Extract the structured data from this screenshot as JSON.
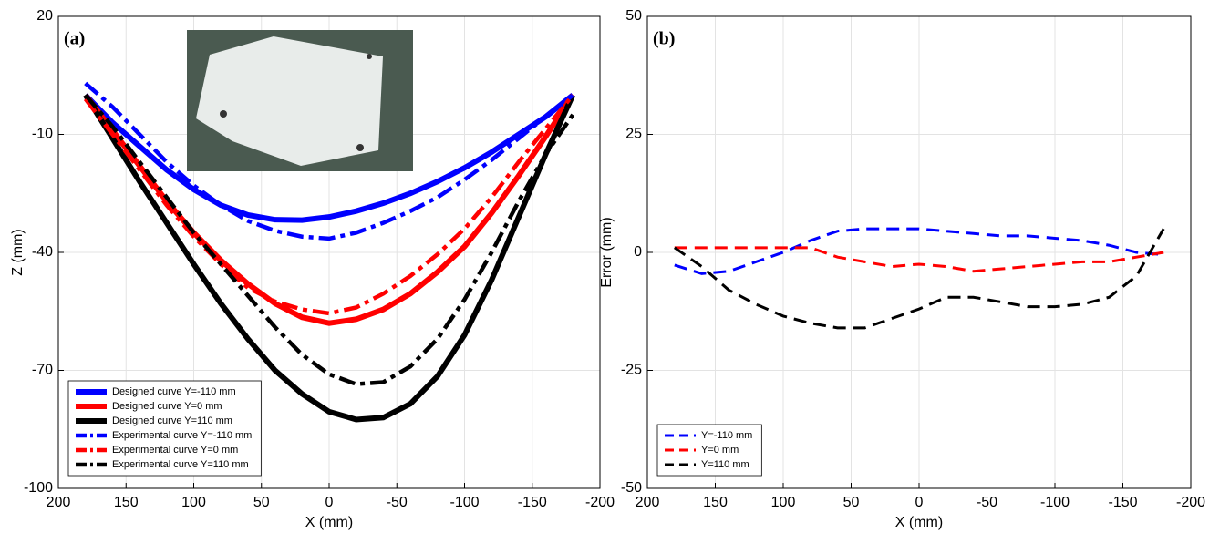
{
  "chart_data": [
    {
      "type": "line",
      "panel_label": "(a)",
      "xlabel": "X (mm)",
      "ylabel": "Z (mm)",
      "x": [
        180,
        160,
        140,
        120,
        100,
        80,
        60,
        40,
        20,
        0,
        -20,
        -40,
        -60,
        -80,
        -100,
        -120,
        -140,
        -160,
        -180
      ],
      "xlim": [
        200,
        -200
      ],
      "xticks": [
        200,
        150,
        100,
        50,
        0,
        -50,
        -100,
        -150,
        -200
      ],
      "ylim": [
        -100,
        20
      ],
      "yticks": [
        -100,
        -70,
        -40,
        -10,
        20
      ],
      "grid": true,
      "legend_loc": "lower left",
      "series": [
        {
          "name": "Designed curve Y=-110 mm",
          "color": "#0000ff",
          "style": "solid",
          "values": [
            0,
            -7,
            -13,
            -19,
            -24,
            -28,
            -30.5,
            -31.7,
            -31.8,
            -31,
            -29.5,
            -27.5,
            -25,
            -22,
            -18.5,
            -14.5,
            -10,
            -5.5,
            0
          ]
        },
        {
          "name": "Designed curve Y=0 mm",
          "color": "#ff0000",
          "style": "solid",
          "values": [
            0,
            -9,
            -18,
            -27,
            -35,
            -42,
            -48,
            -53,
            -56.5,
            -58,
            -57,
            -54.5,
            -50.5,
            -45,
            -38.5,
            -30,
            -20.5,
            -10.5,
            0
          ]
        },
        {
          "name": "Designed curve Y=110 mm",
          "color": "#000000",
          "style": "solid",
          "values": [
            0,
            -11,
            -22,
            -32.5,
            -43,
            -53,
            -62,
            -70,
            -76,
            -80.5,
            -82.5,
            -82,
            -78.5,
            -71.5,
            -61,
            -47,
            -31,
            -15,
            0
          ]
        },
        {
          "name": "Experimental curve Y=-110 mm",
          "color": "#0000ff",
          "style": "dashdot",
          "values": [
            3,
            -3,
            -10,
            -17,
            -23,
            -28,
            -32,
            -34.5,
            -36,
            -36.5,
            -35,
            -32.5,
            -29.5,
            -26,
            -21.5,
            -16.5,
            -11,
            -5.5,
            0
          ]
        },
        {
          "name": "Experimental curve Y=0 mm",
          "color": "#ff0000",
          "style": "dashdot",
          "values": [
            -1,
            -10,
            -19,
            -28,
            -36,
            -43,
            -49,
            -52.5,
            -54.5,
            -55.5,
            -54,
            -50.5,
            -46,
            -40.5,
            -34,
            -26,
            -17,
            -8.5,
            0
          ]
        },
        {
          "name": "Experimental curve Y=110 mm",
          "color": "#000000",
          "style": "dashdot",
          "values": [
            0,
            -8,
            -17,
            -26,
            -35,
            -43,
            -51,
            -59,
            -66,
            -71,
            -73.5,
            -73,
            -69,
            -62,
            -52,
            -40,
            -27,
            -15,
            -5
          ]
        }
      ]
    },
    {
      "type": "line",
      "panel_label": "(b)",
      "xlabel": "X (mm)",
      "ylabel": "Error (mm)",
      "x": [
        180,
        160,
        140,
        120,
        100,
        80,
        60,
        40,
        20,
        0,
        -20,
        -40,
        -60,
        -80,
        -100,
        -120,
        -140,
        -160,
        -180
      ],
      "xlim": [
        200,
        -200
      ],
      "xticks": [
        200,
        150,
        100,
        50,
        0,
        -50,
        -100,
        -150,
        -200
      ],
      "ylim": [
        -50,
        50
      ],
      "yticks": [
        -50,
        -25,
        0,
        25,
        50
      ],
      "grid": true,
      "legend_loc": "lower left",
      "series": [
        {
          "name": "Y=-110 mm",
          "color": "#0000ff",
          "style": "dashed",
          "values": [
            -2.7,
            -4.5,
            -4,
            -2,
            0,
            2.5,
            4.5,
            5,
            5,
            5,
            4.5,
            4,
            3.5,
            3.5,
            3,
            2.5,
            1.5,
            0,
            -0.5
          ]
        },
        {
          "name": "Y=0 mm",
          "color": "#ff0000",
          "style": "dashed",
          "values": [
            1,
            1,
            1,
            1,
            1,
            1,
            -1,
            -2,
            -3,
            -2.5,
            -3,
            -4,
            -3.5,
            -3,
            -2.5,
            -2,
            -2,
            -1,
            0
          ]
        },
        {
          "name": "Y=110 mm",
          "color": "#000000",
          "style": "dashed",
          "values": [
            1,
            -3,
            -8,
            -11,
            -13.5,
            -15,
            -16,
            -16,
            -14,
            -12,
            -9.5,
            -9.5,
            -10.5,
            -11.5,
            -11.5,
            -11,
            -9.5,
            -5,
            5
          ]
        }
      ]
    }
  ]
}
